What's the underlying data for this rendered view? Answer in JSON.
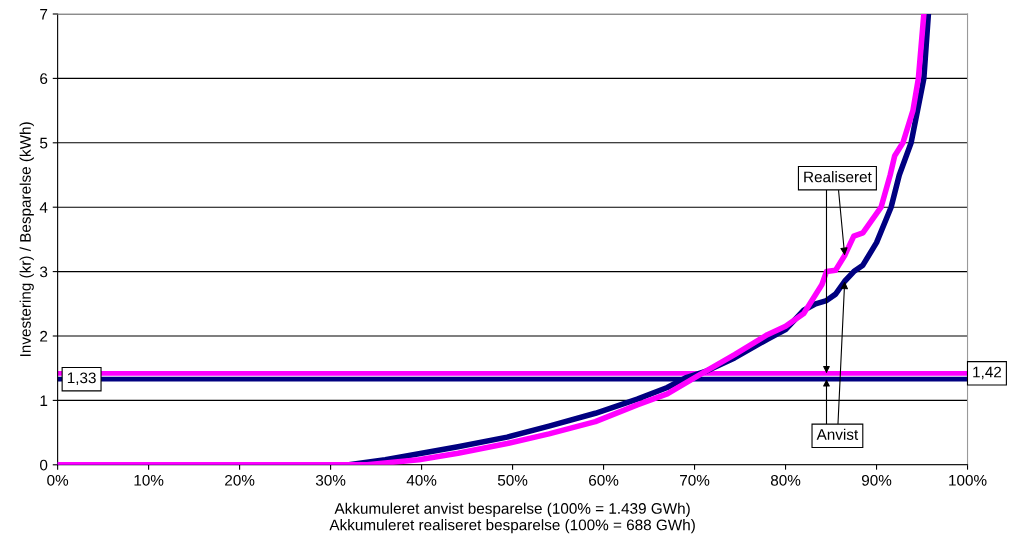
{
  "chart_data": {
    "type": "line",
    "ylabel": "Investering (kr) / Besparelse (kWh)",
    "xlabel": "Akkumuleret anvist besparelse (100% = 1.439 GWh)\nAkkumuleret realiseret besparelse (100% = 688 GWh)",
    "series": [
      {
        "color": "#000080",
        "x": [
          0,
          32,
          36,
          39.7,
          44,
          49.4,
          54,
          59.1,
          63.7,
          67,
          69,
          71.2,
          74.4,
          78,
          80,
          82,
          83.3,
          84.5,
          85.5,
          86.5,
          87.5,
          88.5,
          90,
          91.6,
          92.5,
          93.8,
          94.5,
          95.2,
          95.7
        ],
        "values": [
          0,
          0,
          0.08,
          0.17,
          0.28,
          0.43,
          0.6,
          0.8,
          1.02,
          1.2,
          1.35,
          1.45,
          1.66,
          1.95,
          2.1,
          2.4,
          2.5,
          2.55,
          2.65,
          2.85,
          3.0,
          3.1,
          3.45,
          4.0,
          4.5,
          5.0,
          5.5,
          6.0,
          7.0
        ]
      },
      {
        "color": "#ff00ff",
        "x": [
          0,
          34,
          39.7,
          44,
          49.4,
          54,
          59.1,
          63.7,
          67,
          69,
          71.2,
          74.4,
          78,
          80,
          82,
          84,
          84.5,
          85.5,
          86.5,
          87.5,
          88.5,
          90.5,
          91.5,
          92,
          92.9,
          94,
          94.6,
          95.2
        ],
        "values": [
          0,
          0,
          0.08,
          0.18,
          0.33,
          0.48,
          0.67,
          0.93,
          1.1,
          1.27,
          1.45,
          1.71,
          2.02,
          2.15,
          2.35,
          2.8,
          3.0,
          3.02,
          3.25,
          3.55,
          3.6,
          4.0,
          4.5,
          4.8,
          5.0,
          5.5,
          6.0,
          7.0
        ]
      }
    ],
    "ref_lines": [
      {
        "axis": "y",
        "value": 1.42,
        "label": "1,42",
        "color": "#ff00ff"
      },
      {
        "axis": "y",
        "value": 1.33,
        "label": "1,33",
        "color": "#000080"
      }
    ],
    "annotations": [
      {
        "text": "Realiseret",
        "x": 86.5,
        "y": 3.25
      },
      {
        "text": "Anvist",
        "x": 86.5,
        "y": 2.85
      }
    ],
    "xlim": [
      0,
      100
    ],
    "ylim": [
      0,
      7
    ],
    "xticks": [
      {
        "value": 0,
        "label": "0%"
      },
      {
        "value": 10,
        "label": "10%"
      },
      {
        "value": 20,
        "label": "20%"
      },
      {
        "value": 30,
        "label": "30%"
      },
      {
        "value": 40,
        "label": "40%"
      },
      {
        "value": 50,
        "label": "50%"
      },
      {
        "value": 60,
        "label": "60%"
      },
      {
        "value": 70,
        "label": "70%"
      },
      {
        "value": 80,
        "label": "80%"
      },
      {
        "value": 90,
        "label": "90%"
      },
      {
        "value": 100,
        "label": "100%"
      }
    ],
    "yticks": [
      0,
      1,
      2,
      3,
      4,
      5,
      6,
      7
    ],
    "grid": "y",
    "marker": "none",
    "line_style": "solid",
    "legend": false
  }
}
